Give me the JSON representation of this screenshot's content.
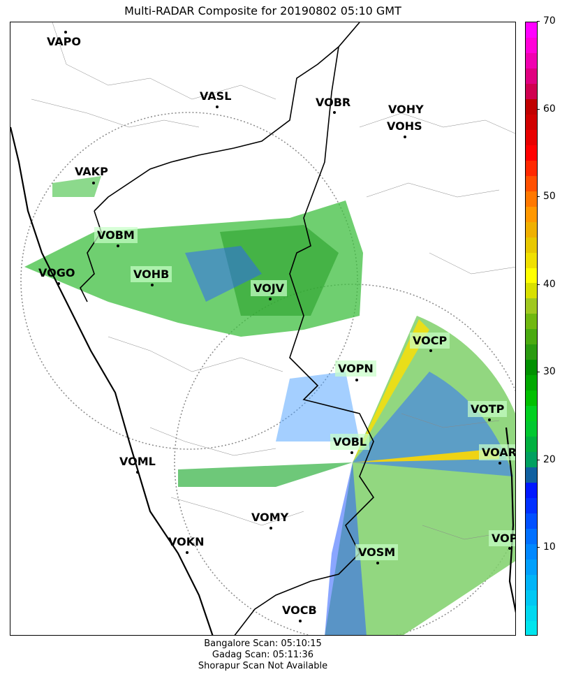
{
  "title": "Multi-RADAR Composite for 20190802 05:10 GMT",
  "stations": [
    {
      "name": "VAPO",
      "highlight": false
    },
    {
      "name": "VASL",
      "highlight": false
    },
    {
      "name": "VOBR",
      "highlight": false
    },
    {
      "name": "VOHY",
      "highlight": false
    },
    {
      "name": "VOHS",
      "highlight": false
    },
    {
      "name": "VAKP",
      "highlight": false
    },
    {
      "name": "VOBM",
      "highlight": true
    },
    {
      "name": "VOGO",
      "highlight": false
    },
    {
      "name": "VOHB",
      "highlight": true
    },
    {
      "name": "VOJV",
      "highlight": true
    },
    {
      "name": "VOCP",
      "highlight": true
    },
    {
      "name": "VOPN",
      "highlight": true
    },
    {
      "name": "VOTP",
      "highlight": true
    },
    {
      "name": "VOBL",
      "highlight": true
    },
    {
      "name": "VOAR",
      "highlight": true
    },
    {
      "name": "VOML",
      "highlight": false
    },
    {
      "name": "VOMY",
      "highlight": false
    },
    {
      "name": "VOKN",
      "highlight": false
    },
    {
      "name": "VOPC",
      "highlight": true
    },
    {
      "name": "VOSM",
      "highlight": true
    },
    {
      "name": "VOCB",
      "highlight": false
    }
  ],
  "colorbar": {
    "min": 0,
    "max": 70,
    "ticks": [
      "10",
      "20",
      "30",
      "40",
      "50",
      "60",
      "70"
    ],
    "colors": [
      "#00e5ee",
      "#00d8f0",
      "#00c8f4",
      "#00b4f8",
      "#00a0fc",
      "#0088ff",
      "#0070ff",
      "#0050ff",
      "#0030ff",
      "#0018ff",
      "#1060a0",
      "#00a060",
      "#00b040",
      "#00c830",
      "#00d020",
      "#00c000",
      "#00a800",
      "#009000",
      "#2a9a10",
      "#4aaa10",
      "#70b810",
      "#a0c820",
      "#d8e000",
      "#ffff00",
      "#f0e000",
      "#e8c800",
      "#f0b000",
      "#ff9800",
      "#ff7800",
      "#ff5000",
      "#ff2800",
      "#ff0000",
      "#e80000",
      "#d00000",
      "#c00000",
      "#d00050",
      "#e00080",
      "#f000b0",
      "#ff00d8",
      "#ff00ff"
    ]
  },
  "footer": [
    "Bangalore Scan: 05:10:15",
    "Gadag Scan: 05:11:36",
    "Shorapur Scan Not Available"
  ]
}
